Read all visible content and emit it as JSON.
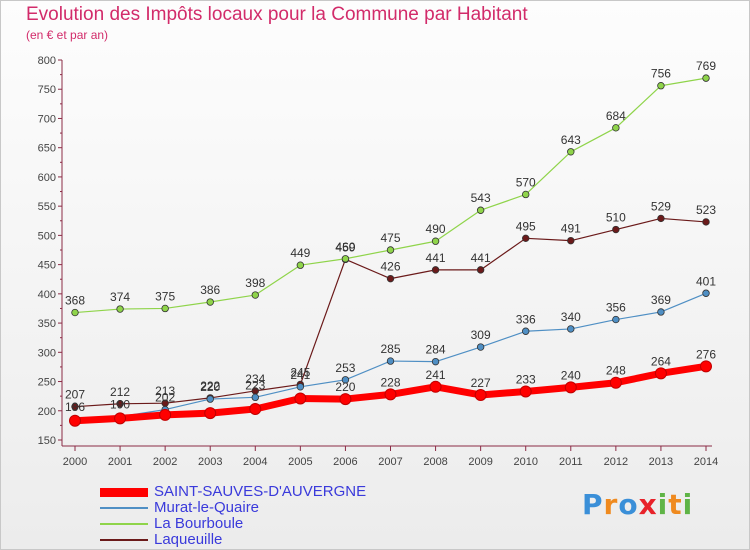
{
  "title": "Evolution des Impôts locaux pour la Commune par Habitant",
  "subtitle": "(en € et par an)",
  "brand": {
    "text": "Proxiti",
    "letters": [
      {
        "ch": "P",
        "color": "#3a8fd8"
      },
      {
        "ch": "r",
        "color": "#ef8a1f"
      },
      {
        "ch": "o",
        "color": "#3a8fd8"
      },
      {
        "ch": "x",
        "color": "#e8222a"
      },
      {
        "ch": "i",
        "color": "#5fb446"
      },
      {
        "ch": "t",
        "color": "#ef8a1f"
      },
      {
        "ch": "i",
        "color": "#5fb446"
      }
    ]
  },
  "chart_data": {
    "type": "line",
    "title": "Evolution des Impôts locaux pour la Commune par Habitant",
    "subtitle": "(en € et par an)",
    "x": [
      "2000",
      "2001",
      "2002",
      "2003",
      "2004",
      "2005",
      "2006",
      "2007",
      "2008",
      "2009",
      "2010",
      "2011",
      "2012",
      "2013",
      "2014"
    ],
    "ylim": [
      150,
      800
    ],
    "yticks": [
      150,
      200,
      250,
      300,
      350,
      400,
      450,
      500,
      550,
      600,
      650,
      700,
      750,
      800
    ],
    "grid": false,
    "legend_position": "bottom-left",
    "series": [
      {
        "name": "SAINT-SAUVES-D'AUVERGNE",
        "color": "#ff0000",
        "text_color": "#ff0000",
        "values": [
          183,
          187,
          193,
          196,
          203,
          221,
          220,
          228,
          241,
          227,
          233,
          240,
          248,
          264,
          276
        ],
        "labels": [
          "",
          "",
          "",
          "",
          "",
          "",
          "220",
          "228",
          "241",
          "227",
          "233",
          "240",
          "248",
          "264",
          "276"
        ]
      },
      {
        "name": "Murat-le-Quaire",
        "color": "#4f8fc4",
        "text_color": "#4f8fc4",
        "values": [
          186,
          190,
          202,
          220,
          223,
          241,
          253,
          285,
          284,
          309,
          336,
          340,
          356,
          369,
          401
        ],
        "labels": [
          "186",
          "190",
          "202",
          "220",
          "223",
          "241",
          "253",
          "285",
          "284",
          "309",
          "336",
          "340",
          "356",
          "369",
          "401"
        ]
      },
      {
        "name": "La Bourboule",
        "color": "#8fd44a",
        "text_color": "#8fd44a",
        "values": [
          368,
          374,
          375,
          386,
          398,
          449,
          460,
          475,
          490,
          543,
          570,
          643,
          684,
          756,
          769
        ],
        "labels": [
          "368",
          "374",
          "375",
          "386",
          "398",
          "449",
          "460",
          "475",
          "490",
          "543",
          "570",
          "643",
          "684",
          "756",
          "769"
        ]
      },
      {
        "name": "Laqueuille",
        "color": "#6b1a1a",
        "text_color": "#6b1a1a",
        "values": [
          207,
          212,
          213,
          222,
          234,
          245,
          459,
          426,
          441,
          441,
          495,
          491,
          510,
          529,
          523
        ],
        "labels": [
          "207",
          "212",
          "213",
          "222",
          "234",
          "245",
          "459",
          "426",
          "441",
          "441",
          "495",
          "491",
          "510",
          "529",
          "523"
        ]
      }
    ]
  }
}
